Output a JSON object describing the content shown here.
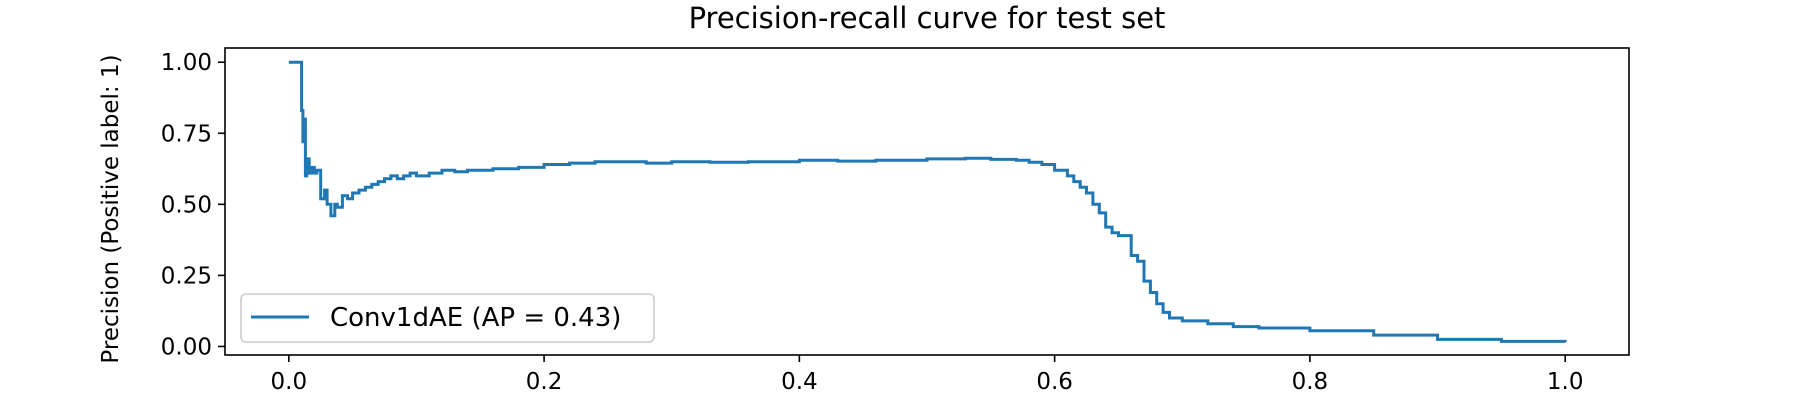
{
  "chart_data": {
    "type": "line",
    "title": "Precision-recall curve for test set",
    "xlabel": "",
    "ylabel": "Precision (Positive label: 1)",
    "xlim": [
      -0.05,
      1.05
    ],
    "ylim": [
      -0.03,
      1.05
    ],
    "x_ticks": [
      0.0,
      0.2,
      0.4,
      0.6,
      0.8,
      1.0
    ],
    "x_tick_labels": [
      "0.0",
      "0.2",
      "0.4",
      "0.6",
      "0.8",
      "1.0"
    ],
    "y_ticks": [
      0.0,
      0.25,
      0.5,
      0.75,
      1.0
    ],
    "y_tick_labels": [
      "0.00",
      "0.25",
      "0.50",
      "0.75",
      "1.00"
    ],
    "grid": false,
    "legend": {
      "position": "lower-left",
      "entries": [
        "Conv1dAE (AP = 0.43)"
      ]
    },
    "colors": {
      "series": "#1f77b4"
    },
    "series": [
      {
        "name": "Conv1dAE (AP = 0.43)",
        "drawstyle": "steps-post",
        "x": [
          0.0,
          0.01,
          0.011,
          0.012,
          0.013,
          0.014,
          0.016,
          0.018,
          0.02,
          0.022,
          0.025,
          0.028,
          0.03,
          0.033,
          0.036,
          0.038,
          0.042,
          0.046,
          0.05,
          0.055,
          0.06,
          0.065,
          0.07,
          0.075,
          0.08,
          0.085,
          0.09,
          0.095,
          0.1,
          0.11,
          0.12,
          0.13,
          0.14,
          0.15,
          0.16,
          0.18,
          0.2,
          0.22,
          0.24,
          0.26,
          0.28,
          0.3,
          0.33,
          0.36,
          0.4,
          0.43,
          0.46,
          0.5,
          0.53,
          0.55,
          0.57,
          0.58,
          0.59,
          0.6,
          0.61,
          0.615,
          0.62,
          0.625,
          0.63,
          0.635,
          0.64,
          0.645,
          0.65,
          0.66,
          0.665,
          0.67,
          0.675,
          0.68,
          0.685,
          0.69,
          0.7,
          0.72,
          0.74,
          0.76,
          0.8,
          0.85,
          0.9,
          0.95,
          1.0
        ],
        "y": [
          1.0,
          0.83,
          0.72,
          0.8,
          0.6,
          0.66,
          0.61,
          0.63,
          0.61,
          0.62,
          0.52,
          0.55,
          0.5,
          0.46,
          0.5,
          0.49,
          0.53,
          0.52,
          0.54,
          0.55,
          0.56,
          0.57,
          0.58,
          0.59,
          0.6,
          0.59,
          0.6,
          0.61,
          0.6,
          0.61,
          0.62,
          0.615,
          0.62,
          0.62,
          0.625,
          0.63,
          0.64,
          0.645,
          0.65,
          0.65,
          0.645,
          0.65,
          0.648,
          0.65,
          0.655,
          0.652,
          0.655,
          0.66,
          0.662,
          0.658,
          0.655,
          0.648,
          0.64,
          0.62,
          0.6,
          0.58,
          0.56,
          0.54,
          0.5,
          0.47,
          0.42,
          0.4,
          0.39,
          0.32,
          0.3,
          0.23,
          0.19,
          0.15,
          0.12,
          0.1,
          0.09,
          0.08,
          0.07,
          0.065,
          0.055,
          0.04,
          0.025,
          0.018,
          0.015
        ]
      }
    ]
  }
}
